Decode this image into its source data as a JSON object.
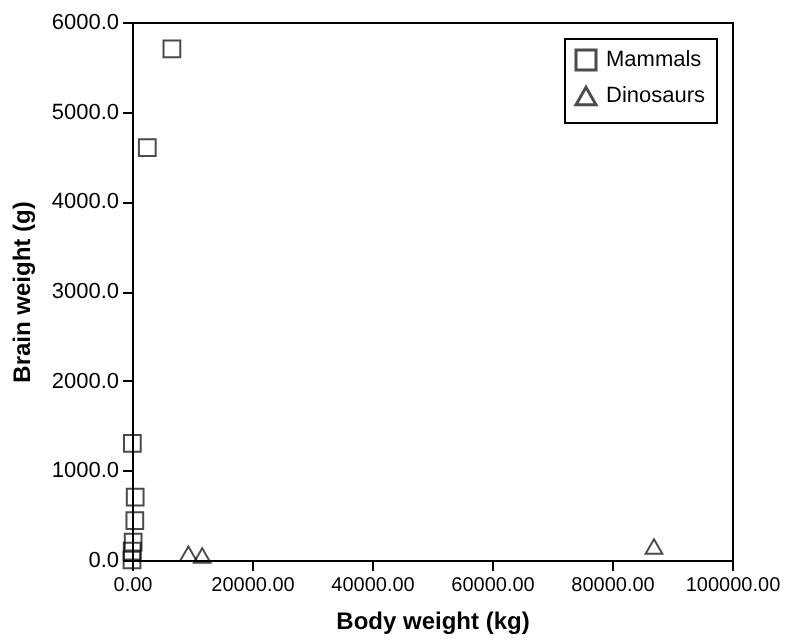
{
  "chart_data": {
    "type": "scatter",
    "xlabel": "Body weight (kg)",
    "ylabel": "Brain weight (g)",
    "series": [
      {
        "name": "Mammals",
        "color": "#000000",
        "marker": "square",
        "x": [
          6650,
          2550,
          60,
          530,
          470,
          190,
          30,
          0
        ],
        "values": [
          5700,
          4600,
          1300,
          700,
          440,
          200,
          100,
          0
        ]
      },
      {
        "name": "Dinosaurs",
        "color": "#000000",
        "marker": "triangle",
        "x": [
          9400,
          11700,
          87000
        ],
        "values": [
          70,
          50,
          150
        ]
      }
    ],
    "xlim": [
      0,
      100000
    ],
    "ylim": [
      0,
      6000
    ],
    "xticks": [
      {
        "value": 0,
        "label": "0.00"
      },
      {
        "value": 20000,
        "label": "20000.00"
      },
      {
        "value": 40000,
        "label": "40000.00"
      },
      {
        "value": 60000,
        "label": "60000.00"
      },
      {
        "value": 80000,
        "label": "80000.00"
      },
      {
        "value": 100000,
        "label": "100000.00"
      }
    ],
    "yticks": [
      {
        "value": 0,
        "label": "0.0"
      },
      {
        "value": 1000,
        "label": "1000.0"
      },
      {
        "value": 2000,
        "label": "2000.0"
      },
      {
        "value": 3000,
        "label": "3000.0"
      },
      {
        "value": 4000,
        "label": "4000.0"
      },
      {
        "value": 5000,
        "label": "5000.0"
      },
      {
        "value": 6000,
        "label": "6000.0"
      }
    ],
    "grid": false,
    "legend": "top right"
  }
}
